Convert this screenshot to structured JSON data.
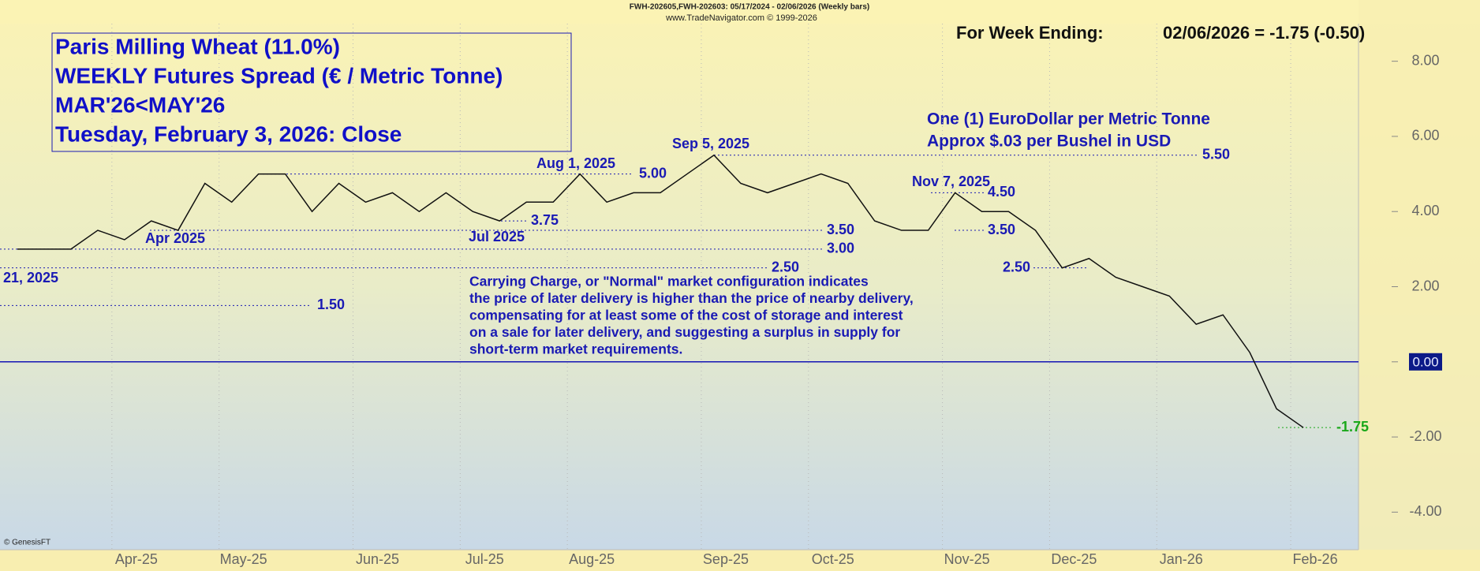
{
  "header": {
    "symbols": "FWH-202605,FWH-202603:  05/17/2024 - 02/06/2026  (Weekly bars)",
    "source": "www.TradeNavigator.com © 1999-2026",
    "week_ending_label": "For Week Ending:",
    "week_ending_value": "02/06/2026 = -1.75 (-0.50)",
    "credit": "© GenesisFT"
  },
  "chart_data": {
    "type": "line",
    "title": [
      "Paris Milling Wheat (11.0%)",
      "WEEKLY Futures Spread (€ / Metric Tonne)",
      "MAR'26<MAY'26",
      "Tuesday, February 3, 2026: Close"
    ],
    "subtitle": [
      "One (1) EuroDollar per Metric Tonne",
      "Approx $.03 per Bushel in USD"
    ],
    "note": [
      "Carrying Charge, or \"Normal\" market configuration indicates",
      "the price of later delivery is higher than the price of nearby delivery,",
      "compensating for at least some of the cost of storage and interest",
      "on a sale for later delivery, and suggesting a surplus in supply for",
      "short-term market requirements."
    ],
    "categories": [
      null,
      null,
      null,
      null,
      "Apr-25",
      null,
      null,
      null,
      "May-25",
      null,
      null,
      null,
      null,
      "Jun-25",
      null,
      null,
      null,
      "Jul-25",
      null,
      null,
      null,
      "Aug-25",
      null,
      null,
      null,
      null,
      "Sep-25",
      null,
      null,
      null,
      "Oct-25",
      null,
      null,
      null,
      null,
      "Nov-25",
      null,
      null,
      null,
      "Dec-25",
      null,
      null,
      null,
      "Jan-26",
      null,
      null,
      null,
      null,
      "Feb-26"
    ],
    "series": [
      {
        "name": "MAR'26<MAY'26",
        "color": "#111111",
        "values": [
          3,
          3,
          3,
          3.5,
          3.25,
          3.75,
          3.5,
          4.75,
          4.25,
          5,
          5,
          4,
          4.75,
          4.25,
          4.5,
          4,
          4.5,
          4,
          3.75,
          4.25,
          4.25,
          5,
          4.25,
          4.5,
          4.5,
          5,
          5.5,
          4.75,
          4.5,
          4.75,
          5,
          4.75,
          3.75,
          3.5,
          3.5,
          4.5,
          4,
          4,
          3.5,
          2.5,
          2.75,
          2.25,
          2,
          1.75,
          1,
          1.25,
          0.25,
          -1.25,
          -1.75
        ]
      }
    ],
    "ylim": [
      -5,
      9
    ],
    "yticks": [
      {
        "value": 8,
        "label": "8.00"
      },
      {
        "value": 6,
        "label": "6.00"
      },
      {
        "value": 4,
        "label": "4.00"
      },
      {
        "value": 2,
        "label": "2.00"
      },
      {
        "value": 0,
        "label": "0.00"
      },
      {
        "value": -2,
        "label": "-2.00"
      },
      {
        "value": -4,
        "label": "-4.00"
      }
    ],
    "level_labels": [
      {
        "value": 5,
        "label": "5.00",
        "color": "#1a1ab4"
      },
      {
        "value": 3.75,
        "label": "3.75",
        "color": "#1a1ab4"
      },
      {
        "value": 3.5,
        "label": "3.50",
        "color": "#1a1ab4"
      },
      {
        "value": 3,
        "label": "3.00",
        "color": "#1a1ab4"
      },
      {
        "value": 2.5,
        "label": "2.50",
        "color": "#1a1ab4"
      },
      {
        "value": 1.5,
        "label": "1.50",
        "color": "#1a1ab4"
      },
      {
        "value": 5.5,
        "label": "5.50",
        "color": "#1a1ab4"
      },
      {
        "value": 4.5,
        "label": "4.50",
        "color": "#1a1ab4"
      },
      {
        "value": 3.5,
        "label": "3.50",
        "color": "#1a1ab4"
      },
      {
        "value": 2.5,
        "label": "2.50",
        "color": "#1a1ab4"
      },
      {
        "value": -1.75,
        "label": "-1.75",
        "color": "#1aa81a"
      }
    ],
    "date_labels": [
      "Apr 2025",
      "Jul 2025",
      "Aug 1, 2025",
      "Sep 5, 2025",
      "Nov 7, 2025",
      "21, 2025"
    ],
    "grid": false
  }
}
